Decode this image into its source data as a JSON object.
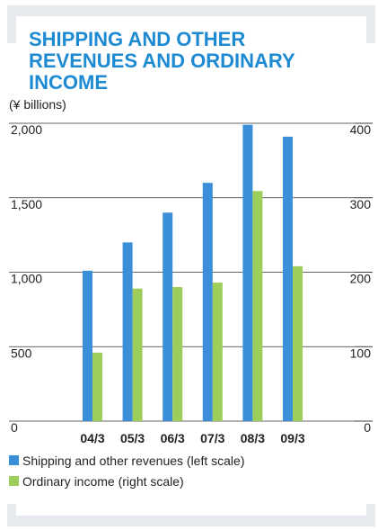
{
  "chart_data": {
    "type": "bar",
    "title": "SHIPPING AND OTHER REVENUES AND ORDINARY INCOME",
    "y_label": "(¥ billions)",
    "categories": [
      "04/3",
      "05/3",
      "06/3",
      "07/3",
      "08/3",
      "09/3"
    ],
    "series": [
      {
        "name": "Shipping and other revenues (left scale)",
        "color": "#3a8fd8",
        "values": [
          1010,
          1200,
          1400,
          1600,
          1990,
          1910
        ]
      },
      {
        "name": "Ordinary income (right scale)",
        "color": "#9dcd5a",
        "axis": "y2",
        "values": [
          92,
          178,
          180,
          186,
          309,
          208
        ]
      }
    ],
    "ylim": [
      0,
      2000
    ],
    "yticks": [
      0,
      500,
      {
        "value": 1000,
        "label": "1,000"
      },
      {
        "value": 1500,
        "label": "1,500"
      },
      {
        "value": 2000,
        "label": "2,000"
      }
    ],
    "y2lim": [
      0,
      400
    ],
    "y2ticks": [
      0,
      100,
      200,
      300,
      400
    ],
    "grid": true
  }
}
